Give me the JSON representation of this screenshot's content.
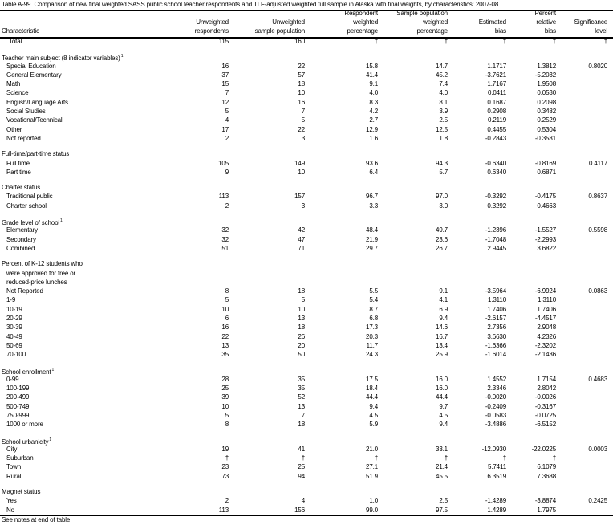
{
  "title": "Table A-99. Comparison of new final weighted SASS public school teacher respondents and TLF-adjusted weighted full sample in Alaska with final weights, by characteristics: 2007-08",
  "columns": [
    [
      "Characteristic"
    ],
    [
      "Unweighted",
      "respondents"
    ],
    [
      "Unweighted",
      "sample population"
    ],
    [
      "Respondent",
      "weighted",
      "percentage"
    ],
    [
      "Sample population",
      "weighted",
      "percentage"
    ],
    [
      "Estimated",
      "bias"
    ],
    [
      "Percent",
      "relative",
      "bias"
    ],
    [
      "Significance",
      "level"
    ]
  ],
  "rows": [
    {
      "type": "total",
      "label": "Total",
      "values": [
        "115",
        "160",
        "†",
        "†",
        "†",
        "†",
        "†"
      ]
    },
    {
      "type": "group",
      "label": "Teacher main subject (8 indicator variables)",
      "sup": "1"
    },
    {
      "type": "item",
      "label": "Special Education",
      "values": [
        "16",
        "22",
        "15.8",
        "14.7",
        "1.1717",
        "1.3812",
        "0.8020"
      ]
    },
    {
      "type": "item",
      "label": "General Elementary",
      "values": [
        "37",
        "57",
        "41.4",
        "45.2",
        "-3.7621",
        "-5.2032",
        ""
      ]
    },
    {
      "type": "item",
      "label": "Math",
      "values": [
        "15",
        "18",
        "9.1",
        "7.4",
        "1.7167",
        "1.9508",
        ""
      ]
    },
    {
      "type": "item",
      "label": "Science",
      "values": [
        "7",
        "10",
        "4.0",
        "4.0",
        "0.0411",
        "0.0530",
        ""
      ]
    },
    {
      "type": "item",
      "label": "English/Language Arts",
      "values": [
        "12",
        "16",
        "8.3",
        "8.1",
        "0.1687",
        "0.2098",
        ""
      ]
    },
    {
      "type": "item",
      "label": "Social Studies",
      "values": [
        "5",
        "7",
        "4.2",
        "3.9",
        "0.2908",
        "0.3482",
        ""
      ]
    },
    {
      "type": "item",
      "label": "Vocational/Technical",
      "values": [
        "4",
        "5",
        "2.7",
        "2.5",
        "0.2119",
        "0.2529",
        ""
      ]
    },
    {
      "type": "item",
      "label": "Other",
      "values": [
        "17",
        "22",
        "12.9",
        "12.5",
        "0.4455",
        "0.5304",
        ""
      ]
    },
    {
      "type": "item",
      "label": "Not reported",
      "values": [
        "2",
        "3",
        "1.6",
        "1.8",
        "-0.2843",
        "-0.3531",
        ""
      ]
    },
    {
      "type": "group",
      "label": "Full-time/part-time status"
    },
    {
      "type": "item",
      "label": "Full time",
      "values": [
        "105",
        "149",
        "93.6",
        "94.3",
        "-0.6340",
        "-0.8169",
        "0.4117"
      ]
    },
    {
      "type": "item",
      "label": "Part time",
      "values": [
        "9",
        "10",
        "6.4",
        "5.7",
        "0.6340",
        "0.6871",
        ""
      ]
    },
    {
      "type": "group",
      "label": "Charter status"
    },
    {
      "type": "item",
      "label": "Traditional public",
      "values": [
        "113",
        "157",
        "96.7",
        "97.0",
        "-0.3292",
        "-0.4175",
        "0.8637"
      ]
    },
    {
      "type": "item",
      "label": "Charter school",
      "values": [
        "2",
        "3",
        "3.3",
        "3.0",
        "0.3292",
        "0.4663",
        ""
      ]
    },
    {
      "type": "group",
      "label": "Grade level of school",
      "sup": "1"
    },
    {
      "type": "item",
      "label": "Elementary",
      "values": [
        "32",
        "42",
        "48.4",
        "49.7",
        "-1.2396",
        "-1.5527",
        "0.5598"
      ]
    },
    {
      "type": "item",
      "label": "Secondary",
      "values": [
        "32",
        "47",
        "21.9",
        "23.6",
        "-1.7048",
        "-2.2993",
        ""
      ]
    },
    {
      "type": "item",
      "label": "Combined",
      "values": [
        "51",
        "71",
        "29.7",
        "26.7",
        "2.9445",
        "3.6822",
        ""
      ]
    },
    {
      "type": "group",
      "label": "Percent of K-12 students who"
    },
    {
      "type": "item",
      "label": "were approved for free or"
    },
    {
      "type": "item",
      "label": "reduced-price lunches"
    },
    {
      "type": "item",
      "label": "Not Reported",
      "values": [
        "8",
        "18",
        "5.5",
        "9.1",
        "-3.5964",
        "-6.9924",
        "0.0863"
      ]
    },
    {
      "type": "item",
      "label": "1-9",
      "values": [
        "5",
        "5",
        "5.4",
        "4.1",
        "1.3110",
        "1.3110",
        ""
      ]
    },
    {
      "type": "item",
      "label": "10-19",
      "values": [
        "10",
        "10",
        "8.7",
        "6.9",
        "1.7406",
        "1.7406",
        ""
      ]
    },
    {
      "type": "item",
      "label": "20-29",
      "values": [
        "6",
        "13",
        "6.8",
        "9.4",
        "-2.6157",
        "-4.4517",
        ""
      ]
    },
    {
      "type": "item",
      "label": "30-39",
      "values": [
        "16",
        "18",
        "17.3",
        "14.6",
        "2.7356",
        "2.9048",
        ""
      ]
    },
    {
      "type": "item",
      "label": "40-49",
      "values": [
        "22",
        "26",
        "20.3",
        "16.7",
        "3.6630",
        "4.2326",
        ""
      ]
    },
    {
      "type": "item",
      "label": "50-69",
      "values": [
        "13",
        "20",
        "11.7",
        "13.4",
        "-1.6366",
        "-2.3202",
        ""
      ]
    },
    {
      "type": "item",
      "label": "70-100",
      "values": [
        "35",
        "50",
        "24.3",
        "25.9",
        "-1.6014",
        "-2.1436",
        ""
      ]
    },
    {
      "type": "group",
      "label": "School enrollment",
      "sup": "1"
    },
    {
      "type": "item",
      "label": "0-99",
      "values": [
        "28",
        "35",
        "17.5",
        "16.0",
        "1.4552",
        "1.7154",
        "0.4683"
      ]
    },
    {
      "type": "item",
      "label": "100-199",
      "values": [
        "25",
        "35",
        "18.4",
        "16.0",
        "2.3346",
        "2.8042",
        ""
      ]
    },
    {
      "type": "item",
      "label": "200-499",
      "values": [
        "39",
        "52",
        "44.4",
        "44.4",
        "-0.0020",
        "-0.0026",
        ""
      ]
    },
    {
      "type": "item",
      "label": "500-749",
      "values": [
        "10",
        "13",
        "9.4",
        "9.7",
        "-0.2409",
        "-0.3167",
        ""
      ]
    },
    {
      "type": "item",
      "label": "750-999",
      "values": [
        "5",
        "7",
        "4.5",
        "4.5",
        "-0.0583",
        "-0.0725",
        ""
      ]
    },
    {
      "type": "item",
      "label": "1000 or more",
      "values": [
        "8",
        "18",
        "5.9",
        "9.4",
        "-3.4886",
        "-6.5152",
        ""
      ]
    },
    {
      "type": "group",
      "label": "School urbanicity",
      "sup": "1"
    },
    {
      "type": "item",
      "label": "City",
      "values": [
        "19",
        "41",
        "21.0",
        "33.1",
        "-12.0930",
        "-22.0225",
        "0.0003"
      ]
    },
    {
      "type": "item",
      "label": "Suburban",
      "values": [
        "†",
        "†",
        "†",
        "†",
        "†",
        "†",
        ""
      ]
    },
    {
      "type": "item",
      "label": "Town",
      "values": [
        "23",
        "25",
        "27.1",
        "21.4",
        "5.7411",
        "6.1079",
        ""
      ]
    },
    {
      "type": "item",
      "label": "Rural",
      "values": [
        "73",
        "94",
        "51.9",
        "45.5",
        "6.3519",
        "7.3688",
        ""
      ]
    },
    {
      "type": "group",
      "label": "Magnet status"
    },
    {
      "type": "item",
      "label": "Yes",
      "values": [
        "2",
        "4",
        "1.0",
        "2.5",
        "-1.4289",
        "-3.8874",
        "0.2425"
      ]
    },
    {
      "type": "item",
      "label": "No",
      "values": [
        "113",
        "156",
        "99.0",
        "97.5",
        "1.4289",
        "1.7975",
        ""
      ]
    }
  ],
  "footnote": "See notes at end of table."
}
